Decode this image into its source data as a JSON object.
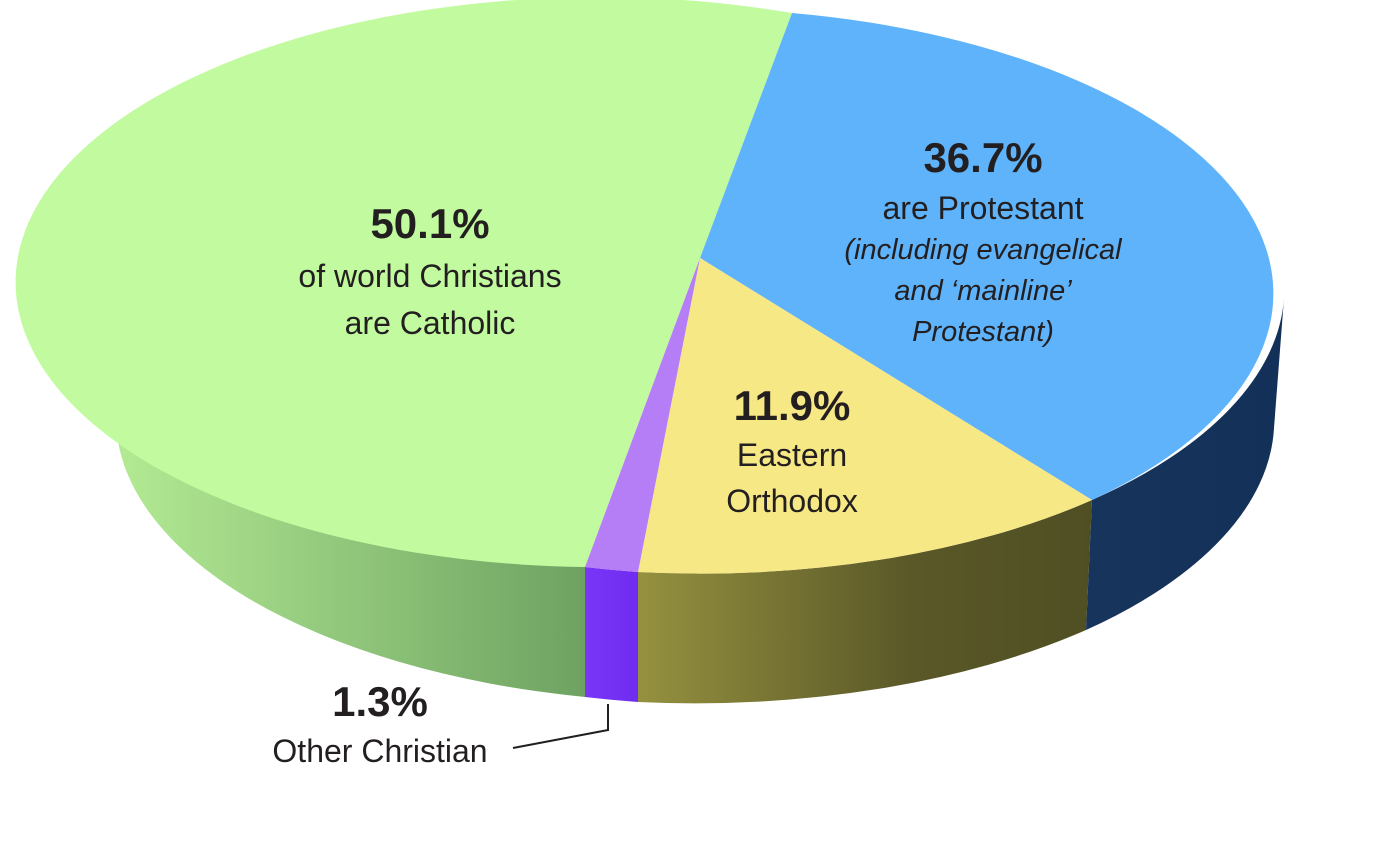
{
  "chart_data": {
    "type": "pie",
    "title": "",
    "slices": [
      {
        "label": "Catholic",
        "value": 50.1,
        "pct_text": "50.1%",
        "lines": [
          "of world Christians",
          "are Catholic"
        ],
        "note_lines": [],
        "color": "#c2fb9f",
        "side_color": "#7fb56a"
      },
      {
        "label": "Protestant",
        "value": 36.7,
        "pct_text": "36.7%",
        "lines": [
          "are Protestant"
        ],
        "note_lines": [
          "(including evangelical",
          "and ‘mainline’",
          "Protestant)"
        ],
        "color": "#5fb3fb",
        "side_color": "#14335b"
      },
      {
        "label": "Eastern Orthodox",
        "value": 11.9,
        "pct_text": "11.9%",
        "lines": [
          "Eastern",
          "Orthodox"
        ],
        "note_lines": [],
        "color": "#f7e886",
        "side_color": "#6b6930"
      },
      {
        "label": "Other Christian",
        "value": 1.3,
        "pct_text": "1.3%",
        "lines": [
          "Other Christian"
        ],
        "note_lines": [],
        "color": "#b57ef7",
        "side_color": "#7635f5"
      }
    ],
    "legend": "none",
    "style": "3d-tilted"
  }
}
